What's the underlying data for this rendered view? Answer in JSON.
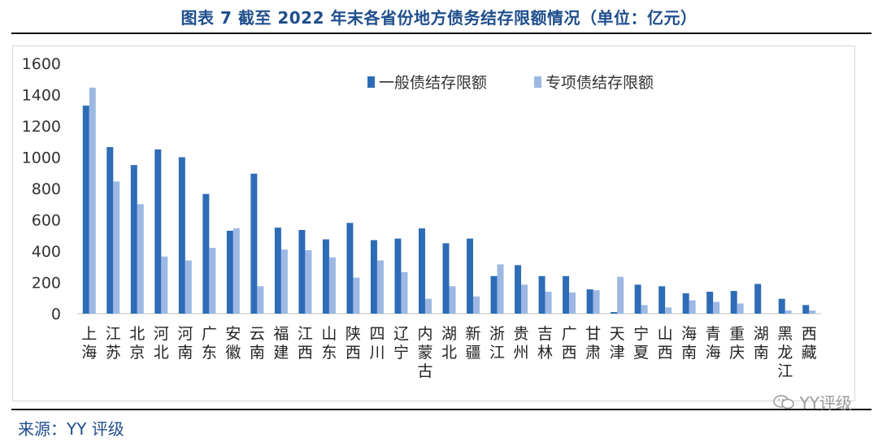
{
  "title": "图表 7 截至 2022 年末各省份地方债务结存限额情况（单位：亿元）",
  "source": "来源：YY 评级",
  "watermark": "YY评级",
  "colors": {
    "series1": "#2e6cb6",
    "series2": "#9db8e3",
    "title": "#1f4e8c"
  },
  "chart_data": {
    "type": "bar",
    "categories": [
      "上海",
      "江苏",
      "北京",
      "河北",
      "河南",
      "广东",
      "安徽",
      "云南",
      "福建",
      "江西",
      "山东",
      "陕西",
      "四川",
      "辽宁",
      "内蒙古",
      "湖北",
      "新疆",
      "浙江",
      "贵州",
      "吉林",
      "广西",
      "甘肃",
      "天津",
      "宁夏",
      "山西",
      "海南",
      "青海",
      "重庆",
      "湖南",
      "黑龙江",
      "西藏"
    ],
    "series": [
      {
        "name": "一般债结存限额",
        "values": [
          1330,
          1065,
          950,
          1050,
          1000,
          765,
          530,
          895,
          550,
          535,
          475,
          580,
          470,
          480,
          545,
          450,
          480,
          240,
          310,
          240,
          240,
          155,
          10,
          185,
          175,
          130,
          140,
          145,
          190,
          95,
          55
        ]
      },
      {
        "name": "专项债结存限额",
        "values": [
          1445,
          845,
          700,
          365,
          340,
          420,
          545,
          175,
          410,
          405,
          360,
          230,
          340,
          265,
          95,
          175,
          110,
          315,
          185,
          140,
          135,
          150,
          235,
          55,
          40,
          85,
          75,
          65,
          0,
          20,
          20
        ]
      }
    ],
    "ylim": [
      0,
      1600
    ],
    "yticks": [
      0,
      200,
      400,
      600,
      800,
      1000,
      1200,
      1400,
      1600
    ],
    "legend": "top-right",
    "grid": false
  }
}
